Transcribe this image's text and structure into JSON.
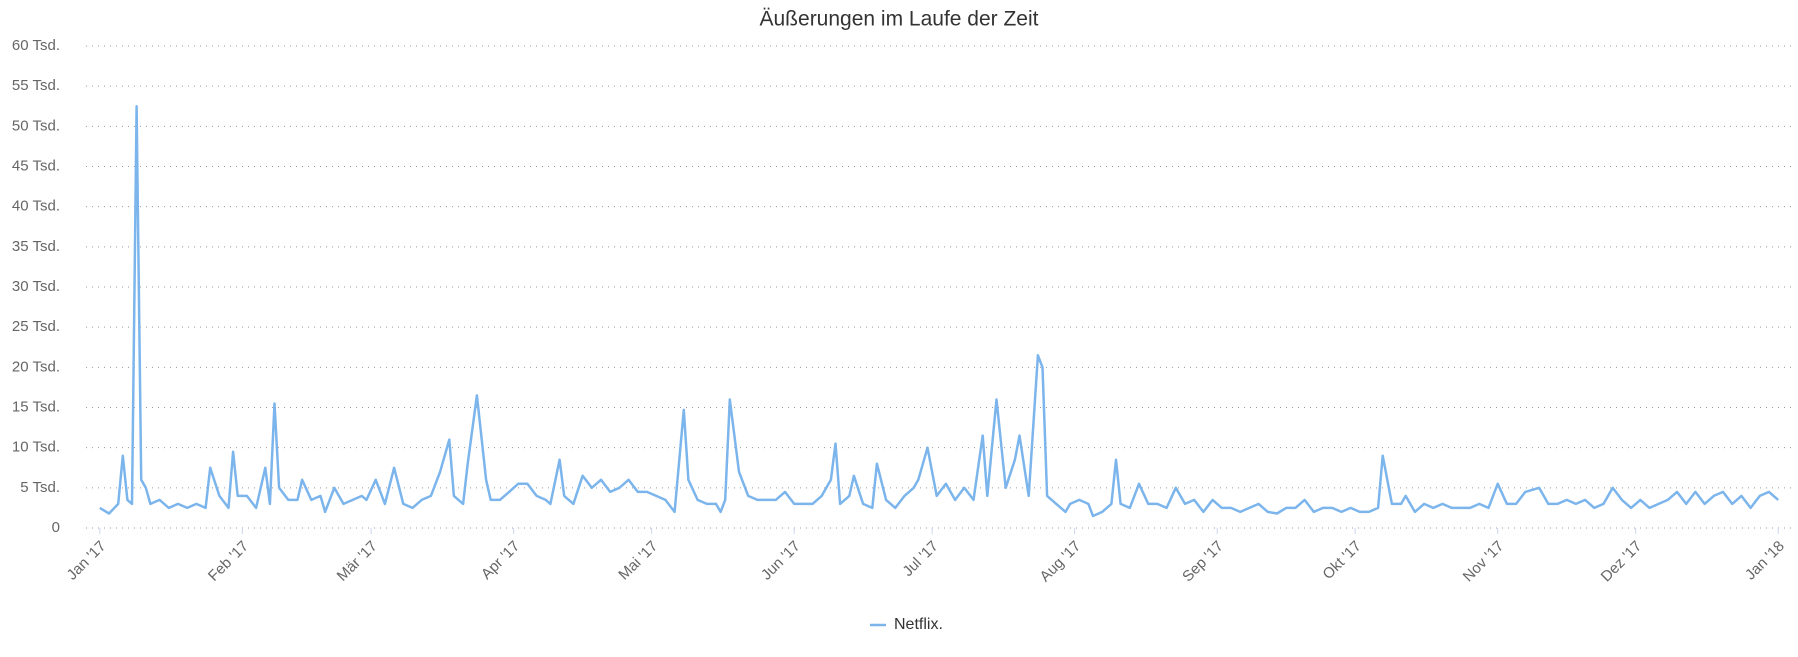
{
  "chart_data": {
    "type": "line",
    "title": "Äußerungen im Laufe der Zeit",
    "x": [
      0,
      2,
      4,
      5,
      6,
      7,
      8,
      9,
      10,
      11,
      13,
      15,
      17,
      19,
      21,
      23,
      24,
      26,
      28,
      29,
      30,
      32,
      34,
      36,
      37,
      38,
      39,
      41,
      43,
      44,
      46,
      48,
      49,
      51,
      53,
      55,
      57,
      58,
      60,
      62,
      64,
      66,
      68,
      70,
      72,
      74,
      76,
      77,
      79,
      80,
      82,
      84,
      85,
      87,
      89,
      91,
      93,
      95,
      97,
      98,
      100,
      101,
      103,
      105,
      107,
      109,
      111,
      113,
      115,
      117,
      119,
      121,
      123,
      125,
      127,
      128,
      130,
      132,
      134,
      135,
      136,
      137,
      139,
      141,
      143,
      145,
      147,
      149,
      151,
      153,
      155,
      157,
      159,
      160,
      161,
      163,
      164,
      166,
      168,
      169,
      171,
      173,
      175,
      177,
      178,
      180,
      182,
      184,
      186,
      188,
      190,
      192,
      193,
      195,
      197,
      199,
      200,
      202,
      204,
      205,
      206,
      208,
      210,
      211,
      213,
      215,
      216,
      218,
      220,
      221,
      222,
      224,
      226,
      228,
      230,
      232,
      234,
      236,
      238,
      240,
      242,
      244,
      246,
      248,
      250,
      252,
      254,
      256,
      258,
      260,
      262,
      264,
      266,
      268,
      270,
      272,
      274,
      276,
      278,
      279,
      281,
      283,
      284,
      286,
      288,
      290,
      292,
      294,
      296,
      298,
      300,
      302,
      304,
      306,
      308,
      310,
      313,
      315,
      317,
      319,
      321,
      323,
      325,
      327,
      329,
      331,
      333,
      335,
      337,
      339,
      341,
      343,
      345,
      347,
      349,
      351,
      353,
      355,
      357,
      359,
      361,
      363,
      365
    ],
    "series": [
      {
        "name": "Netflix.",
        "color": "#7cb5ec",
        "values": [
          2.5,
          1.8,
          3,
          9,
          3.5,
          3,
          52.5,
          6,
          5,
          3,
          3.5,
          2.5,
          3,
          2.5,
          3,
          2.5,
          7.5,
          4,
          2.5,
          9.5,
          4,
          4,
          2.5,
          7.5,
          3,
          15.5,
          5,
          3.5,
          3.5,
          6,
          3.5,
          4,
          2,
          5,
          3,
          3.5,
          4,
          3.5,
          6,
          3,
          7.5,
          3,
          2.5,
          3.5,
          4,
          7,
          11,
          4,
          3,
          8,
          16.5,
          6,
          3.5,
          3.5,
          4.5,
          5.5,
          5.5,
          4,
          3.5,
          3,
          8.5,
          4,
          3,
          6.5,
          5,
          6,
          4.5,
          5,
          6,
          4.5,
          4.5,
          4,
          3.5,
          2,
          14.7,
          6,
          3.5,
          3,
          3,
          2,
          3.5,
          16,
          7,
          4,
          3.5,
          3.5,
          3.5,
          4.5,
          3,
          3,
          3,
          4,
          6,
          10.5,
          3,
          4,
          6.5,
          3,
          2.5,
          8,
          3.5,
          2.5,
          4,
          5,
          6,
          10,
          4,
          5.5,
          3.5,
          5,
          3.5,
          11.5,
          4,
          16,
          5,
          8.5,
          11.5,
          4,
          21.5,
          20,
          4,
          3,
          2,
          3,
          3.5,
          3,
          1.5,
          2,
          3,
          8.5,
          3,
          2.5,
          5.5,
          3,
          3,
          2.5,
          5,
          3,
          3.5,
          2,
          3.5,
          2.5,
          2.5,
          2,
          2.5,
          3,
          2,
          1.8,
          2.5,
          2.5,
          3.5,
          2,
          2.5,
          2.5,
          2,
          2.5,
          2,
          2,
          2.5,
          9,
          3,
          3,
          4,
          2,
          3,
          2.5,
          3,
          2.5,
          2.5,
          2.5,
          3,
          2.5,
          5.5,
          3,
          3,
          4.5,
          5,
          3,
          3,
          3.5,
          3,
          3.5,
          2.5,
          3,
          5,
          3.5,
          2.5,
          3.5,
          2.5,
          3,
          3.5,
          4.5,
          3,
          4.5,
          3,
          4,
          4.5,
          3,
          4,
          2.5,
          4,
          4.5,
          3.5
        ]
      }
    ],
    "xlim": [
      -3,
      368
    ],
    "xticks": [
      {
        "value": 0,
        "label": "Jan '17"
      },
      {
        "value": 31,
        "label": "Feb '17"
      },
      {
        "value": 59,
        "label": "Mär '17"
      },
      {
        "value": 90,
        "label": "Apr '17"
      },
      {
        "value": 120,
        "label": "Mai '17"
      },
      {
        "value": 151,
        "label": "Jun '17"
      },
      {
        "value": 181,
        "label": "Jul '17"
      },
      {
        "value": 212,
        "label": "Aug '17"
      },
      {
        "value": 243,
        "label": "Sep '17"
      },
      {
        "value": 273,
        "label": "Okt '17"
      },
      {
        "value": 304,
        "label": "Nov '17"
      },
      {
        "value": 334,
        "label": "Dez '17"
      },
      {
        "value": 365,
        "label": "Jan '18"
      }
    ],
    "ylim": [
      0,
      60
    ],
    "yticks": [
      0,
      {
        "value": 5,
        "label": "5 Tsd."
      },
      {
        "value": 10,
        "label": "10 Tsd."
      },
      {
        "value": 15,
        "label": "15 Tsd."
      },
      {
        "value": 20,
        "label": "20 Tsd."
      },
      {
        "value": 25,
        "label": "25 Tsd."
      },
      {
        "value": 30,
        "label": "30 Tsd."
      },
      {
        "value": 35,
        "label": "35 Tsd."
      },
      {
        "value": 40,
        "label": "40 Tsd."
      },
      {
        "value": 45,
        "label": "45 Tsd."
      },
      {
        "value": 50,
        "label": "50 Tsd."
      },
      {
        "value": 55,
        "label": "55 Tsd."
      },
      {
        "value": 60,
        "label": "60 Tsd."
      }
    ],
    "grid": true,
    "legend": "bottom"
  }
}
